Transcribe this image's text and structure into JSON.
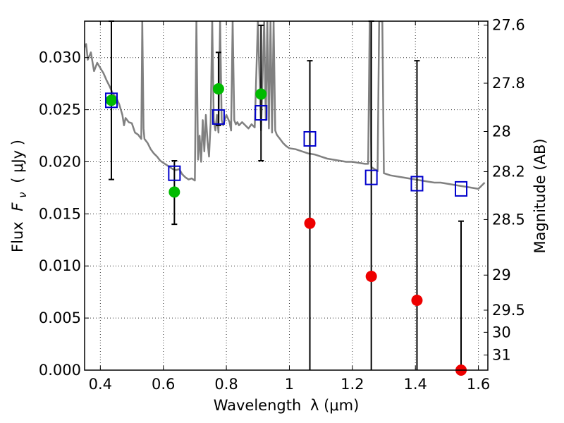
{
  "chart_data": {
    "type": "scatter",
    "xlabel": "Wavelength",
    "xlabel_math": "λ (μm)",
    "ylabel": "Flux",
    "ylabel_math": "F",
    "ylabel_sub": "ν",
    "ylabel_unit": "( μJy )",
    "y2label": "Magnitude (AB)",
    "xlim": [
      0.35,
      1.63
    ],
    "ylim": [
      0.0,
      0.0335
    ],
    "grid": true,
    "x_ticks": [
      0.4,
      0.6,
      0.8,
      1.0,
      1.2,
      1.4,
      1.6
    ],
    "x_tick_labels": [
      "0.4",
      "0.6",
      "0.8",
      "1",
      "1.2",
      "1.4",
      "1.6"
    ],
    "y_ticks": [
      0.0,
      0.005,
      0.01,
      0.015,
      0.02,
      0.025,
      0.03
    ],
    "y_tick_labels": [
      "0.000",
      "0.005",
      "0.010",
      "0.015",
      "0.020",
      "0.025",
      "0.030"
    ],
    "y2_ticks": [
      27.6,
      27.8,
      28,
      28.2,
      28.5,
      29,
      29.5,
      30,
      31
    ],
    "y2_tick_labels": [
      "27.6",
      "27.8",
      "28",
      "28.2",
      "28.5",
      "29",
      "29.5",
      "30",
      "31"
    ],
    "colors": {
      "spectrum": "#808080",
      "model_square": "#0000cc",
      "detection": "#00bb00",
      "non_detection": "#ee0000",
      "errorbar": "#000000"
    },
    "series": [
      {
        "kind": "spectrum",
        "x": [
          0.35,
          0.355,
          0.36,
          0.37,
          0.38,
          0.39,
          0.4,
          0.41,
          0.42,
          0.43,
          0.44,
          0.45,
          0.46,
          0.47,
          0.475,
          0.48,
          0.49,
          0.5,
          0.51,
          0.52,
          0.53,
          0.533,
          0.537,
          0.54,
          0.55,
          0.56,
          0.57,
          0.58,
          0.59,
          0.6,
          0.61,
          0.62,
          0.63,
          0.64,
          0.65,
          0.66,
          0.67,
          0.68,
          0.69,
          0.7,
          0.705,
          0.71,
          0.715,
          0.72,
          0.725,
          0.73,
          0.735,
          0.74,
          0.745,
          0.75,
          0.755,
          0.76,
          0.765,
          0.77,
          0.775,
          0.78,
          0.785,
          0.79,
          0.8,
          0.81,
          0.815,
          0.82,
          0.825,
          0.83,
          0.835,
          0.84,
          0.85,
          0.86,
          0.87,
          0.88,
          0.89,
          0.9,
          0.91,
          0.92,
          0.925,
          0.93,
          0.935,
          0.94,
          0.945,
          0.95,
          0.955,
          0.96,
          0.97,
          0.98,
          0.99,
          1.0,
          1.02,
          1.04,
          1.06,
          1.08,
          1.1,
          1.12,
          1.14,
          1.16,
          1.18,
          1.2,
          1.22,
          1.24,
          1.25,
          1.255,
          1.26,
          1.27,
          1.28,
          1.285,
          1.29,
          1.295,
          1.3,
          1.31,
          1.32,
          1.34,
          1.36,
          1.38,
          1.4,
          1.42,
          1.44,
          1.46,
          1.48,
          1.5,
          1.52,
          1.54,
          1.56,
          1.58,
          1.6,
          1.62
        ],
        "y": [
          0.031,
          0.0313,
          0.0298,
          0.0305,
          0.0287,
          0.0295,
          0.029,
          0.0285,
          0.0278,
          0.0272,
          0.0265,
          0.0262,
          0.0255,
          0.0245,
          0.0235,
          0.0242,
          0.0238,
          0.0237,
          0.0228,
          0.0226,
          0.0222,
          0.0335,
          0.0232,
          0.0222,
          0.0218,
          0.0212,
          0.0208,
          0.0205,
          0.0201,
          0.0199,
          0.0197,
          0.0195,
          0.0193,
          0.0192,
          0.0193,
          0.0188,
          0.0185,
          0.0183,
          0.0184,
          0.0182,
          0.0335,
          0.0202,
          0.0225,
          0.02,
          0.024,
          0.021,
          0.0245,
          0.022,
          0.0205,
          0.0238,
          0.0335,
          0.024,
          0.023,
          0.0245,
          0.0228,
          0.0335,
          0.024,
          0.0235,
          0.0245,
          0.0238,
          0.023,
          0.0335,
          0.024,
          0.0236,
          0.0238,
          0.0235,
          0.0238,
          0.0235,
          0.0232,
          0.0236,
          0.0233,
          0.0335,
          0.023,
          0.0335,
          0.024,
          0.0335,
          0.0232,
          0.0335,
          0.0228,
          0.0335,
          0.023,
          0.0226,
          0.0222,
          0.0218,
          0.0215,
          0.0213,
          0.0212,
          0.021,
          0.0208,
          0.0207,
          0.0205,
          0.0203,
          0.0202,
          0.0201,
          0.02,
          0.02,
          0.0199,
          0.0198,
          0.0198,
          0.0335,
          0.0195,
          0.0193,
          0.0191,
          0.0335,
          0.0335,
          0.0335,
          0.0189,
          0.0188,
          0.0187,
          0.0186,
          0.0185,
          0.0184,
          0.0183,
          0.0182,
          0.0181,
          0.018,
          0.018,
          0.0179,
          0.0178,
          0.0177,
          0.0176,
          0.0175,
          0.0174,
          0.018
        ]
      },
      {
        "kind": "model",
        "x": [
          0.435,
          0.635,
          0.775,
          0.91,
          1.065,
          1.26,
          1.405,
          1.545
        ],
        "y": [
          0.0259,
          0.0189,
          0.0243,
          0.0247,
          0.0222,
          0.0185,
          0.0179,
          0.0174
        ]
      },
      {
        "kind": "detection",
        "x": [
          0.435,
          0.635,
          0.775,
          0.91
        ],
        "y": [
          0.0259,
          0.0171,
          0.027,
          0.0265
        ]
      },
      {
        "kind": "non_detection",
        "x": [
          1.065,
          1.26,
          1.405,
          1.545
        ],
        "y": [
          0.0141,
          0.009,
          0.0067,
          0.0
        ]
      },
      {
        "kind": "errorbar",
        "x": [
          0.435,
          0.635,
          0.775,
          0.91,
          1.065,
          1.26,
          1.405,
          1.545
        ],
        "low": [
          0.0183,
          0.014,
          0.0235,
          0.0201,
          0.0,
          0.0,
          0.0,
          0.0
        ],
        "high": [
          0.0335,
          0.0201,
          0.0305,
          0.0331,
          0.0297,
          0.0335,
          0.0297,
          0.0143
        ]
      }
    ]
  }
}
